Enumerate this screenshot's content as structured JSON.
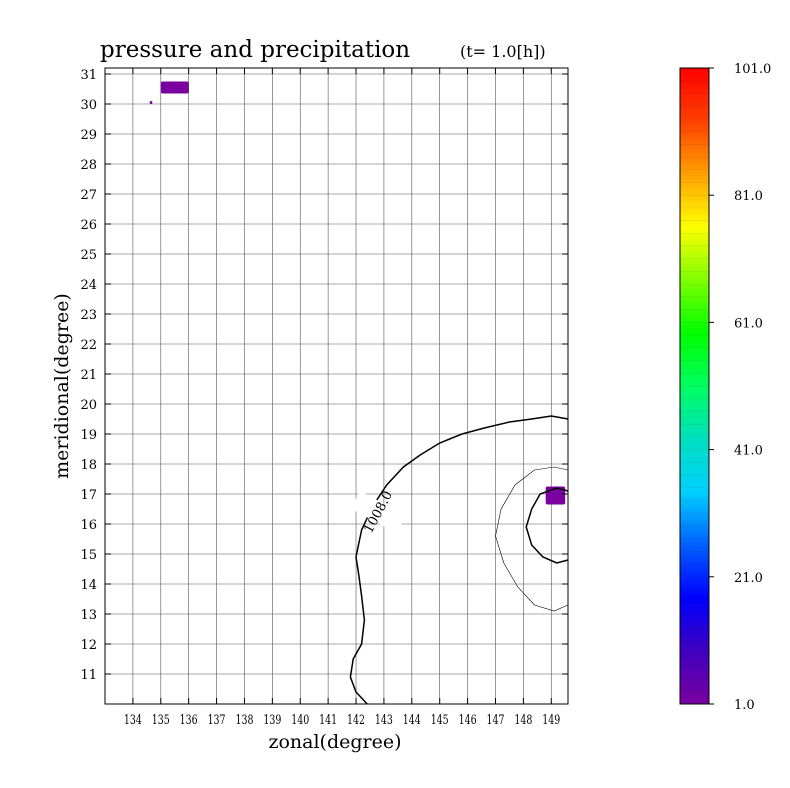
{
  "chart_data": {
    "type": "contour_map",
    "title": "pressure and precipitation",
    "subtitle": "(t=   1.0[h])",
    "xlabel": "zonal(degree)",
    "ylabel": "meridional(degree)",
    "xlim": [
      133,
      149.6
    ],
    "ylim": [
      10,
      31.2
    ],
    "xticks": [
      134,
      135,
      136,
      137,
      138,
      139,
      140,
      141,
      142,
      143,
      144,
      145,
      146,
      147,
      148,
      149
    ],
    "yticks": [
      11,
      12,
      13,
      14,
      15,
      16,
      17,
      18,
      19,
      20,
      21,
      22,
      23,
      24,
      25,
      26,
      27,
      28,
      29,
      30,
      31
    ],
    "grid": true,
    "contours": [
      {
        "level": "1008.0",
        "weight": "bold",
        "points": [
          [
            142.4,
            10.0
          ],
          [
            142.0,
            10.4
          ],
          [
            141.8,
            10.9
          ],
          [
            141.9,
            11.5
          ],
          [
            142.2,
            12.0
          ],
          [
            142.3,
            12.8
          ],
          [
            142.2,
            13.6
          ],
          [
            142.1,
            14.3
          ],
          [
            142.0,
            14.9
          ],
          [
            142.2,
            15.8
          ],
          [
            142.6,
            16.6
          ],
          [
            143.1,
            17.3
          ],
          [
            143.7,
            17.9
          ],
          [
            144.3,
            18.3
          ],
          [
            145.0,
            18.7
          ],
          [
            145.8,
            19.0
          ],
          [
            146.6,
            19.2
          ],
          [
            147.5,
            19.4
          ],
          [
            148.3,
            19.5
          ],
          [
            149.0,
            19.6
          ],
          [
            149.6,
            19.5
          ]
        ],
        "label_at": [
          142.8,
          16.4
        ]
      },
      {
        "level": "",
        "weight": "bold",
        "points": [
          [
            149.6,
            14.8
          ],
          [
            149.2,
            14.7
          ],
          [
            148.7,
            14.9
          ],
          [
            148.3,
            15.3
          ],
          [
            148.1,
            15.9
          ],
          [
            148.3,
            16.5
          ],
          [
            148.6,
            17.0
          ],
          [
            149.2,
            17.2
          ],
          [
            149.6,
            17.1
          ]
        ]
      },
      {
        "level": "",
        "weight": "thin",
        "points": [
          [
            149.6,
            13.3
          ],
          [
            149.1,
            13.1
          ],
          [
            148.4,
            13.3
          ],
          [
            147.8,
            13.9
          ],
          [
            147.3,
            14.7
          ],
          [
            147.0,
            15.6
          ],
          [
            147.2,
            16.5
          ],
          [
            147.7,
            17.3
          ],
          [
            148.4,
            17.8
          ],
          [
            149.1,
            17.9
          ],
          [
            149.6,
            17.8
          ]
        ]
      }
    ],
    "precipitation": [
      {
        "x": [
          135.0,
          136.0
        ],
        "y": [
          30.35,
          30.75
        ],
        "value": 3
      },
      {
        "x": [
          134.6,
          134.7
        ],
        "y": [
          30.0,
          30.1
        ],
        "value": 3
      },
      {
        "x": [
          148.8,
          149.5
        ],
        "y": [
          16.65,
          17.25
        ],
        "value": 5
      }
    ],
    "colorbar": {
      "min": 1.0,
      "max": 101.0,
      "tick_labels": [
        "1.0",
        "21.0",
        "41.0",
        "61.0",
        "81.0",
        "101.0"
      ],
      "tick_values": [
        1,
        21,
        41,
        61,
        81,
        101
      ],
      "colors": [
        "#7a00a0",
        "#4000c0",
        "#0000ff",
        "#0060ff",
        "#00d0ff",
        "#00e0c0",
        "#00ff60",
        "#00ff00",
        "#80ff00",
        "#ffff00",
        "#ffa000",
        "#ff4000",
        "#ff0000"
      ]
    }
  }
}
